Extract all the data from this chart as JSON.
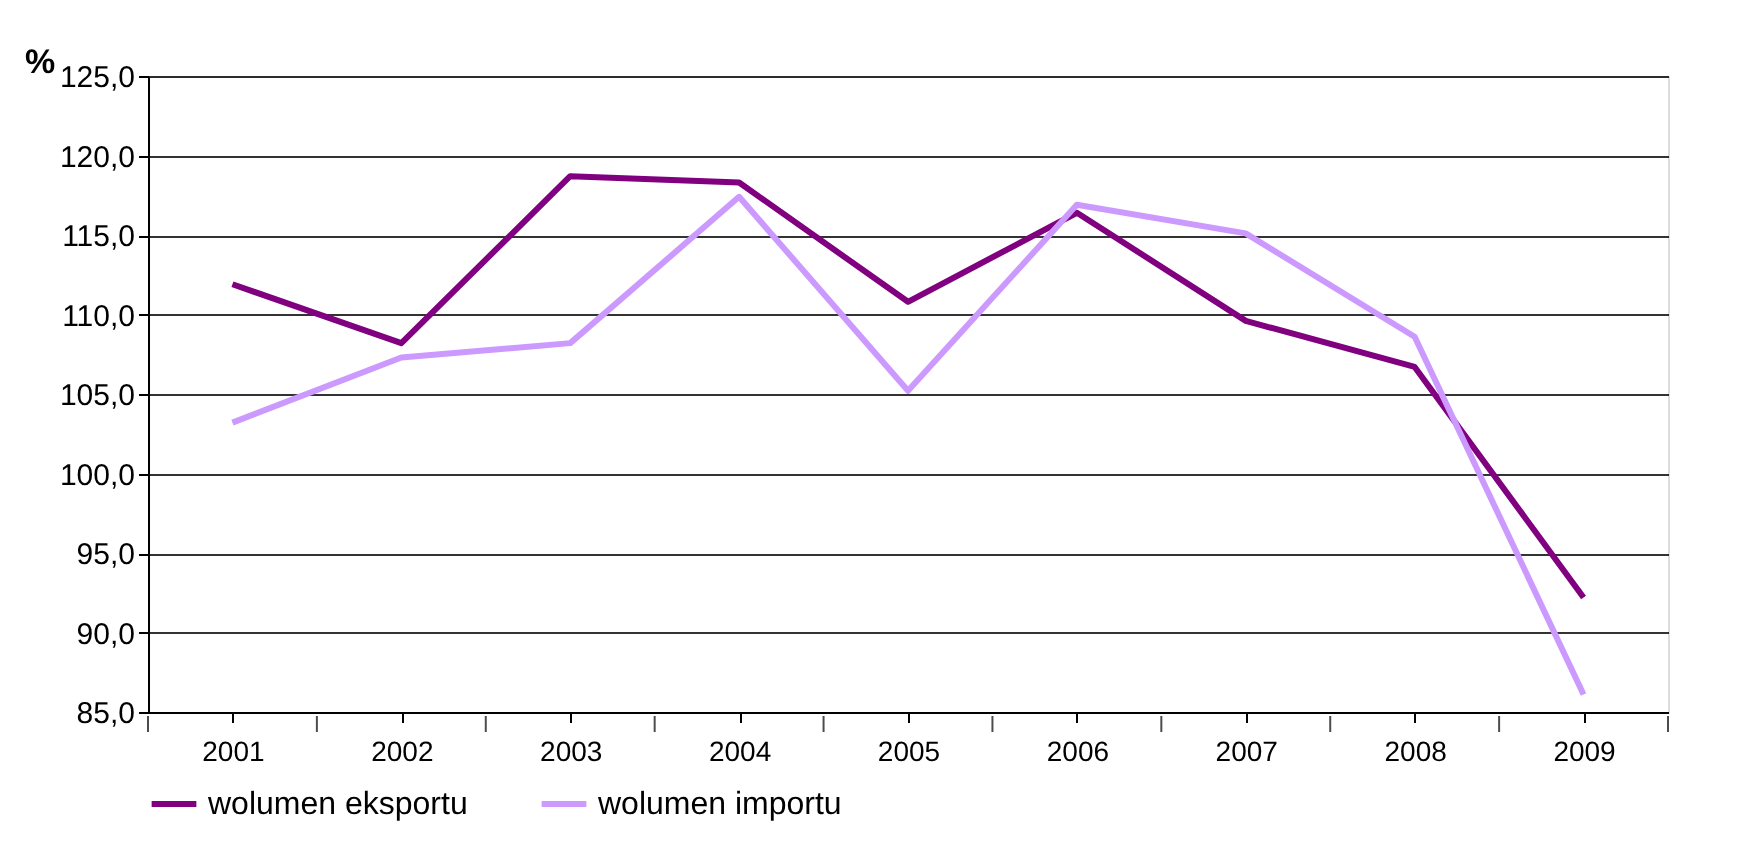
{
  "chart_data": {
    "type": "line",
    "ylabel": "%",
    "categories": [
      "2001",
      "2002",
      "2003",
      "2004",
      "2005",
      "2006",
      "2007",
      "2008",
      "2009"
    ],
    "series": [
      {
        "name": "wolumen eksportu",
        "color": "#800080",
        "values": [
          111.9,
          108.2,
          118.7,
          118.3,
          110.8,
          116.4,
          109.6,
          106.7,
          92.2
        ]
      },
      {
        "name": "wolumen importu",
        "color": "#cc99ff",
        "values": [
          103.2,
          107.3,
          108.2,
          117.4,
          105.2,
          116.9,
          115.1,
          108.6,
          86.1
        ]
      }
    ],
    "ylim": [
      85,
      125
    ],
    "yticks": [
      {
        "value": 85,
        "label": "85,0"
      },
      {
        "value": 90,
        "label": "90,0"
      },
      {
        "value": 95,
        "label": "95,0"
      },
      {
        "value": 100,
        "label": "100,0"
      },
      {
        "value": 105,
        "label": "105,0"
      },
      {
        "value": 110,
        "label": "110,0"
      },
      {
        "value": 115,
        "label": "115,0"
      },
      {
        "value": 120,
        "label": "120,0"
      },
      {
        "value": 125,
        "label": "125,0"
      }
    ],
    "grid": "y",
    "legend": "bottom",
    "line_style": "solid"
  }
}
